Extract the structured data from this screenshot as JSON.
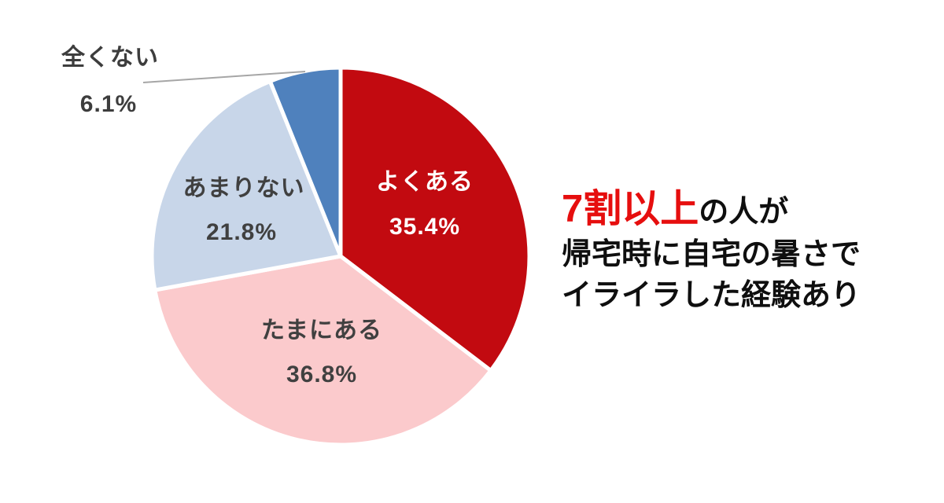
{
  "chart_data": {
    "type": "pie",
    "title": "",
    "direction": "clockwise",
    "start_angle_deg": 0,
    "separator_color": "#FFFFFF",
    "slices": [
      {
        "label": "よくある",
        "value": 35.4,
        "pct_label": "35.4%",
        "color": "#C20A10",
        "text_color": "#FFFFFF",
        "label_position": "inside"
      },
      {
        "label": "たまにある",
        "value": 36.8,
        "pct_label": "36.8%",
        "color": "#FBCACC",
        "text_color": "#404040",
        "label_position": "inside"
      },
      {
        "label": "あまりない",
        "value": 21.8,
        "pct_label": "21.8%",
        "color": "#C8D6E9",
        "text_color": "#404040",
        "label_position": "inside"
      },
      {
        "label": "全くない",
        "value": 6.1,
        "pct_label": "6.1%",
        "color": "#4F81BD",
        "text_color": "#3D3D3D",
        "label_position": "outside-top-left"
      }
    ],
    "leader_line_color": "#A6A6A6"
  },
  "headline": {
    "line1_highlight": "7割以上",
    "line1_rest": "の人が",
    "line2": "帰宅時に自宅の暑さで",
    "line3": "イライラした経験あり",
    "highlight_color": "#E60E0E",
    "text_color": "#0F0F0F"
  }
}
